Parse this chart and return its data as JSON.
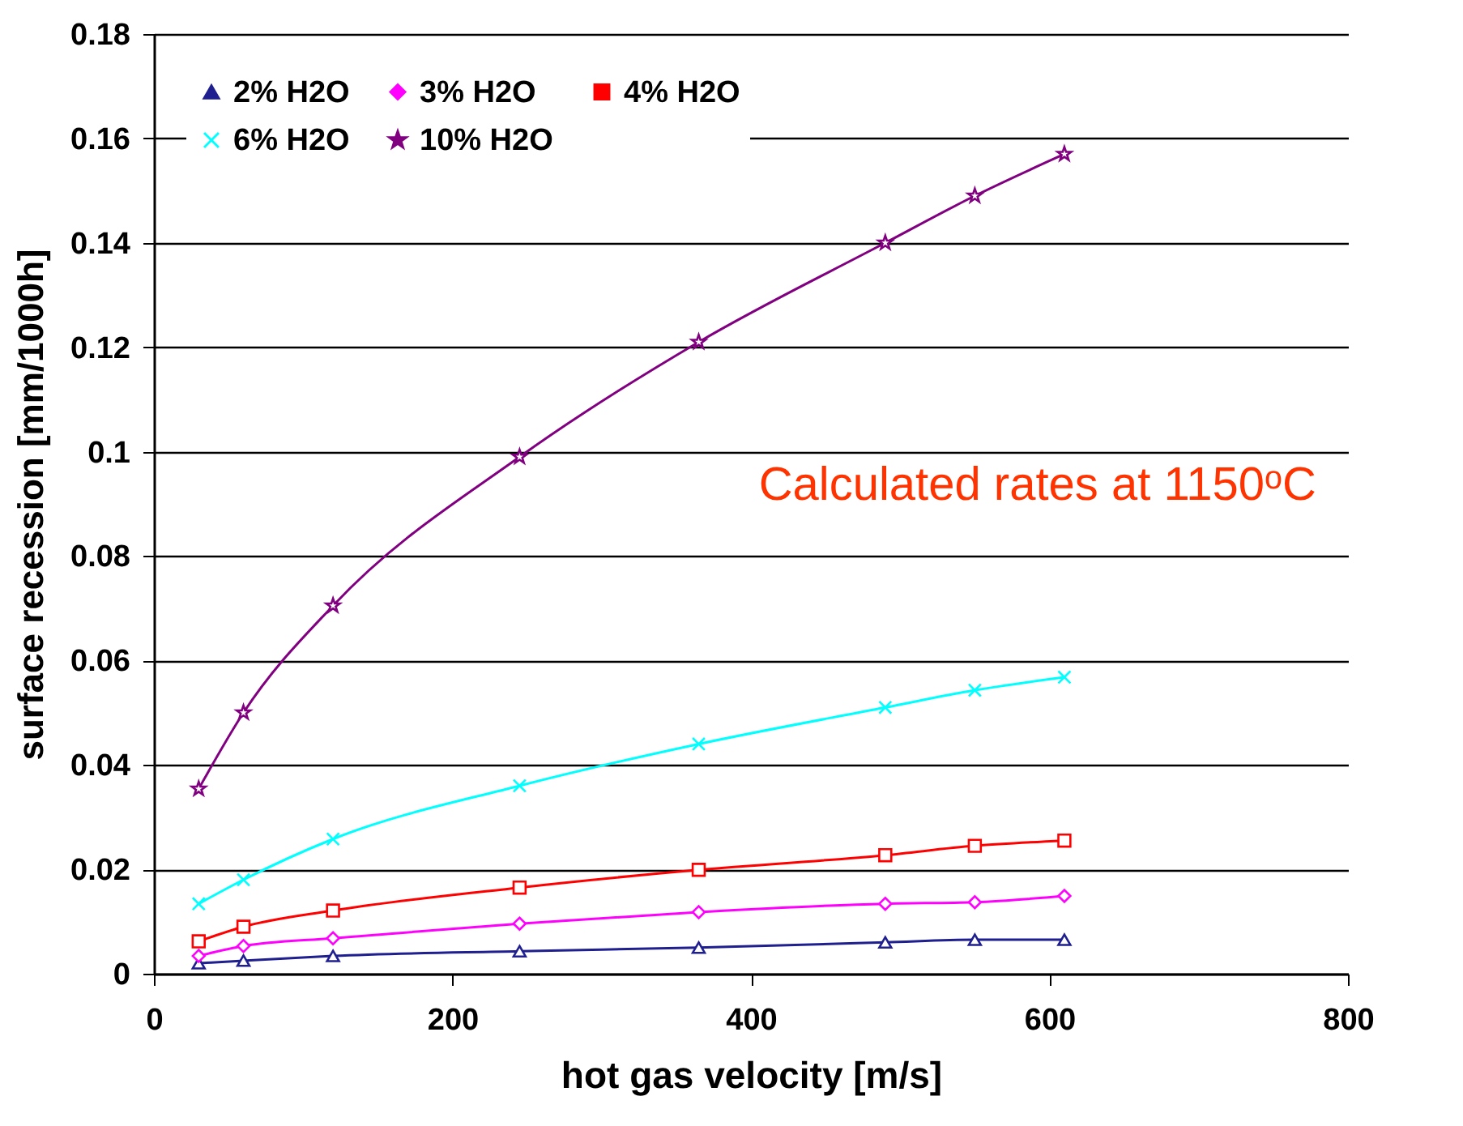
{
  "chart_data": {
    "type": "line",
    "xlabel": "hot gas velocity [m/s]",
    "ylabel": "surface recession [mm/1000h]",
    "x": [
      30,
      60,
      120,
      245,
      365,
      490,
      550,
      610
    ],
    "series": [
      {
        "name": "2% H2O",
        "color": "#1f1f8f",
        "marker": "triangle",
        "values": [
          0.002,
          0.0025,
          0.0034,
          0.0043,
          0.005,
          0.006,
          0.0065,
          0.0065
        ]
      },
      {
        "name": "3% H2O",
        "color": "#ff00ff",
        "marker": "diamond",
        "values": [
          0.0034,
          0.0053,
          0.0068,
          0.0096,
          0.0118,
          0.0134,
          0.0137,
          0.0149
        ]
      },
      {
        "name": "4% H2O",
        "color": "#ff0000",
        "marker": "square",
        "values": [
          0.0062,
          0.009,
          0.0121,
          0.0165,
          0.0199,
          0.0227,
          0.0245,
          0.0255
        ]
      },
      {
        "name": "6% H2O",
        "color": "#00ffff",
        "marker": "cross",
        "values": [
          0.0134,
          0.018,
          0.0258,
          0.036,
          0.044,
          0.051,
          0.0543,
          0.0568
        ]
      },
      {
        "name": "10% H2O",
        "color": "#800080",
        "marker": "star",
        "values": [
          0.0354,
          0.05,
          0.0705,
          0.099,
          0.121,
          0.14,
          0.149,
          0.157
        ]
      }
    ],
    "xlim": [
      0,
      800
    ],
    "xticks": [
      0,
      200,
      400,
      600,
      800
    ],
    "ylim": [
      0,
      0.18
    ],
    "yticks": [
      {
        "value": 0,
        "label": "0"
      },
      0.02,
      0.04,
      0.06,
      0.08,
      {
        "value": 0.1,
        "label": "0.1"
      },
      0.12,
      0.14,
      0.16,
      0.18
    ],
    "grid": "y",
    "legend": "top left",
    "line_style": "solid",
    "annotations": [
      "Calculated rates at 1150ᵒC"
    ]
  }
}
